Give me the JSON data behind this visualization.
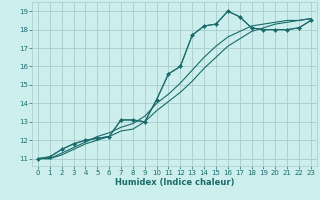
{
  "xlabel": "Humidex (Indice chaleur)",
  "bg_color": "#cceeed",
  "grid_color": "#aacccc",
  "line_color": "#1a6b6b",
  "xlim": [
    -0.5,
    23.5
  ],
  "ylim": [
    10.6,
    19.5
  ],
  "xticks": [
    0,
    1,
    2,
    3,
    4,
    5,
    6,
    7,
    8,
    9,
    10,
    11,
    12,
    13,
    14,
    15,
    16,
    17,
    18,
    19,
    20,
    21,
    22,
    23
  ],
  "yticks": [
    11,
    12,
    13,
    14,
    15,
    16,
    17,
    18,
    19
  ],
  "series": [
    {
      "x": [
        0,
        1,
        2,
        3,
        4,
        5,
        6,
        7,
        8,
        9,
        10,
        11,
        12,
        13,
        14,
        15,
        16,
        17,
        18,
        19,
        20,
        21,
        22,
        23
      ],
      "y": [
        11.0,
        11.1,
        11.5,
        11.8,
        12.0,
        12.1,
        12.2,
        13.1,
        13.1,
        13.0,
        14.2,
        15.6,
        16.0,
        17.7,
        18.2,
        18.3,
        19.0,
        18.7,
        18.1,
        18.0,
        18.0,
        18.0,
        18.1,
        18.5
      ],
      "has_marker": true,
      "marker": "+"
    },
    {
      "x": [
        0,
        1,
        2,
        3,
        4,
        5,
        6,
        7,
        8,
        9,
        10,
        11,
        12,
        13,
        14,
        15,
        16,
        17,
        18,
        19,
        20,
        21,
        22,
        23
      ],
      "y": [
        11.0,
        11.0,
        11.2,
        11.5,
        11.8,
        12.0,
        12.2,
        12.5,
        12.6,
        13.0,
        13.6,
        14.1,
        14.6,
        15.2,
        15.9,
        16.5,
        17.1,
        17.5,
        17.9,
        18.1,
        18.3,
        18.4,
        18.5,
        18.6
      ],
      "has_marker": false
    },
    {
      "x": [
        0,
        1,
        2,
        3,
        4,
        5,
        6,
        7,
        8,
        9,
        10,
        11,
        12,
        13,
        14,
        15,
        16,
        17,
        18,
        19,
        20,
        21,
        22,
        23
      ],
      "y": [
        11.0,
        11.0,
        11.3,
        11.6,
        11.9,
        12.2,
        12.4,
        12.7,
        12.9,
        13.3,
        14.0,
        14.5,
        15.1,
        15.8,
        16.5,
        17.1,
        17.6,
        17.9,
        18.2,
        18.3,
        18.4,
        18.5,
        18.5,
        18.6
      ],
      "has_marker": false
    },
    {
      "x": [
        0,
        1,
        2,
        3,
        4,
        5,
        6,
        7,
        8,
        9,
        10,
        11,
        12,
        13,
        14,
        15,
        16,
        17,
        18,
        19,
        20,
        21,
        22,
        23
      ],
      "y": [
        11.0,
        11.1,
        11.5,
        11.8,
        12.0,
        12.1,
        12.2,
        13.1,
        13.1,
        13.0,
        14.2,
        15.6,
        16.0,
        17.7,
        18.2,
        18.3,
        19.0,
        18.7,
        18.1,
        18.0,
        18.0,
        18.0,
        18.1,
        18.5
      ],
      "has_marker": true,
      "marker": "D"
    }
  ],
  "tick_fontsize": 5.0,
  "xlabel_fontsize": 6.0
}
